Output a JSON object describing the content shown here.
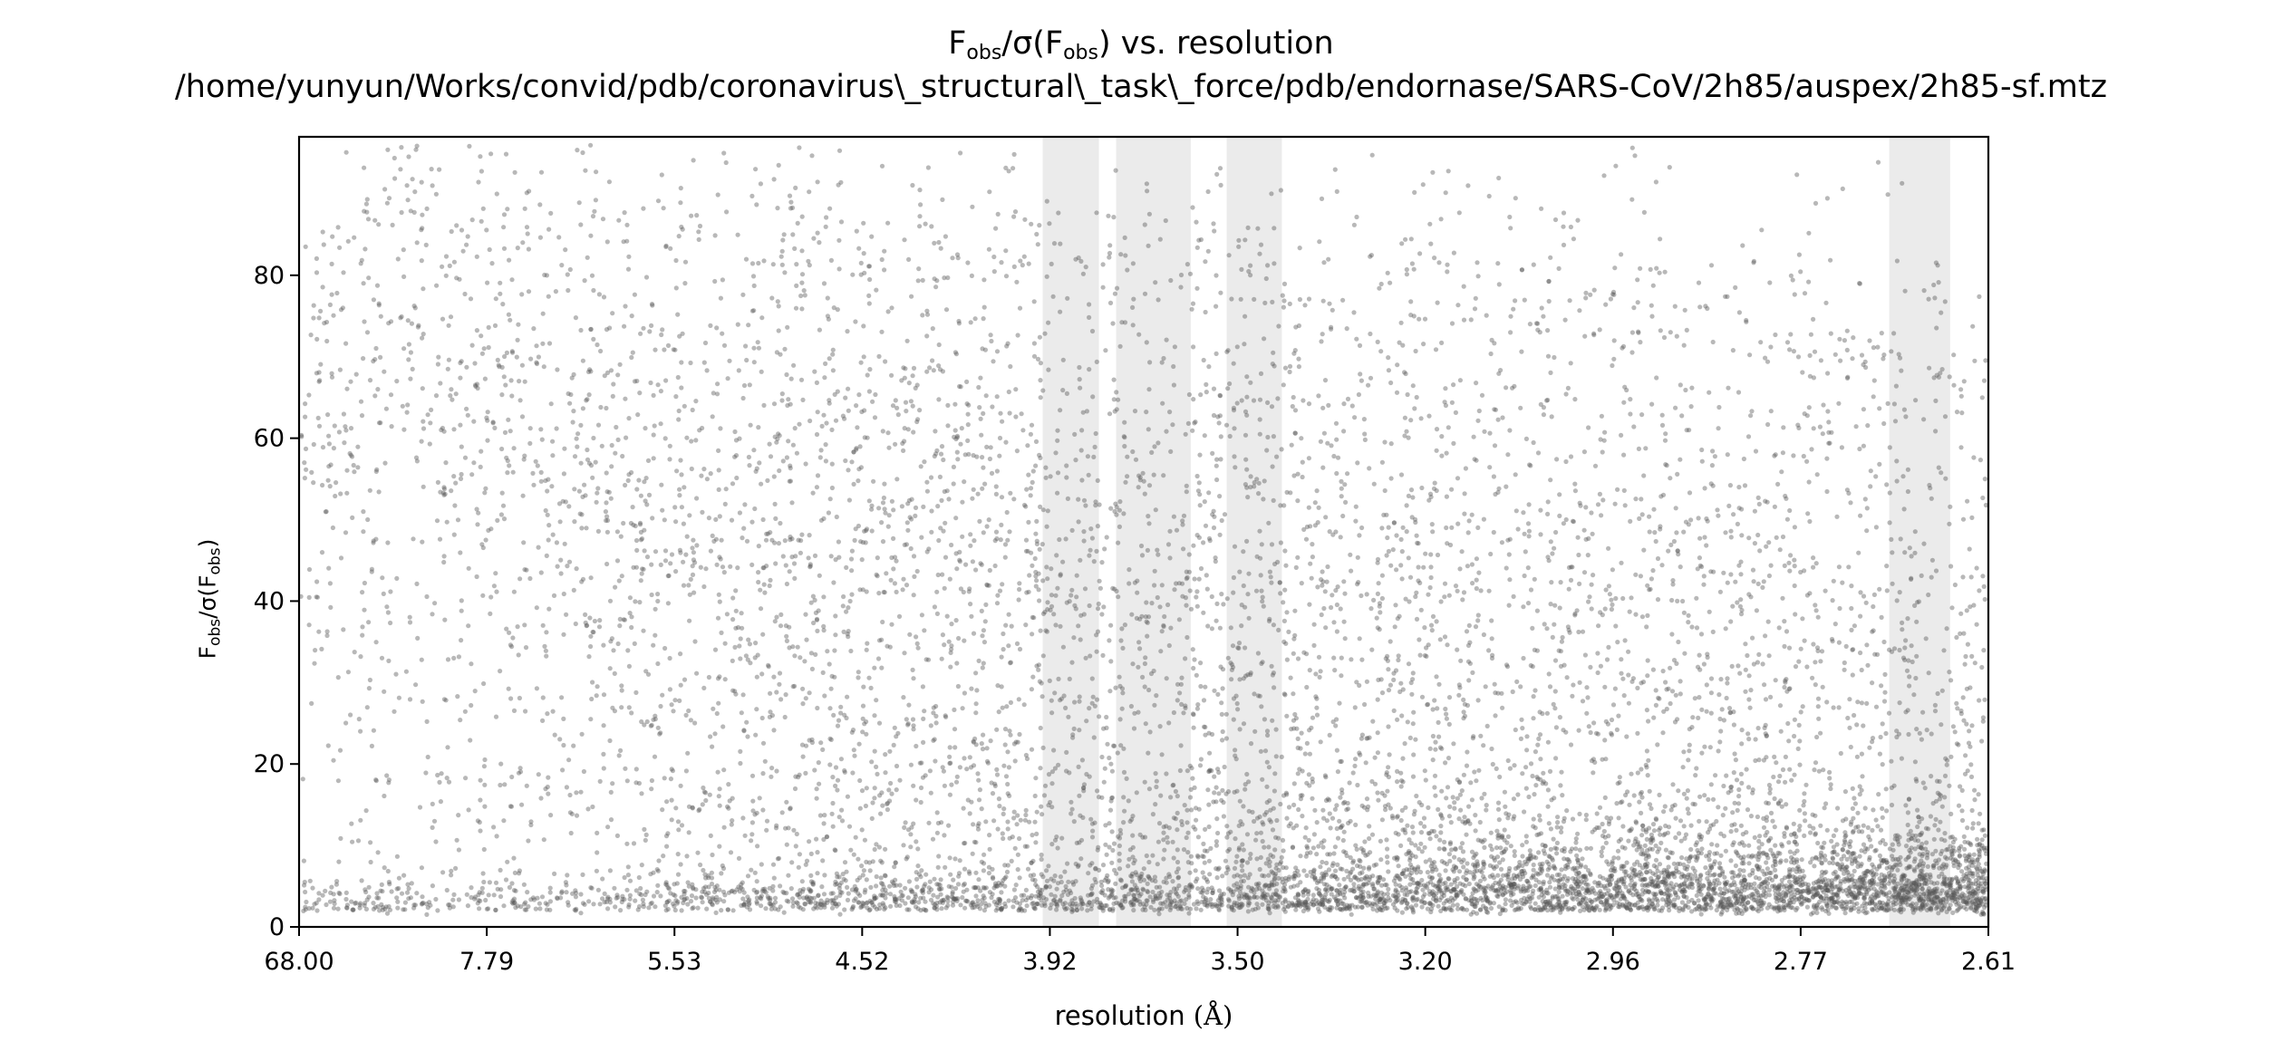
{
  "chart_data": {
    "type": "scatter",
    "title": {
      "line1_parts": [
        "F",
        "obs",
        "/σ(F",
        "obs",
        ") vs. resolution"
      ],
      "line2": "/home/yunyun/Works/convid/pdb/coronavirus\\_structural\\_task\\_force/pdb/endornase/SARS-CoV/2h85/auspex/2h85-sf.mtz"
    },
    "xlabel": {
      "text": "resolution ",
      "unit": "(Å)"
    },
    "ylabel_parts": [
      "F",
      "obs",
      "/σ(F",
      "obs",
      ")"
    ],
    "x_scale": "reciprocal-squared (1/d²)",
    "x_ticks": [
      "68.00",
      "7.79",
      "5.53",
      "4.52",
      "3.92",
      "3.50",
      "3.20",
      "2.96",
      "2.77",
      "2.61"
    ],
    "y_ticks": [
      0,
      20,
      40,
      60,
      80
    ],
    "ylim": [
      0,
      97
    ],
    "xlim_resolution": [
      68.0,
      2.61
    ],
    "grid": false,
    "legend": "none",
    "point_color": "#555555",
    "band_color": "#ebebeb",
    "flagged_resolution_bands": [
      [
        3.93,
        3.79
      ],
      [
        3.75,
        3.59
      ],
      [
        3.52,
        3.42
      ],
      [
        2.69,
        2.64
      ]
    ],
    "density_profile_note": "Dense cloud of reflections: high F/σ (up to ~95) at low resolution, decaying toward ~0–20 at high resolution; dense band near 2–6 across the whole range."
  }
}
